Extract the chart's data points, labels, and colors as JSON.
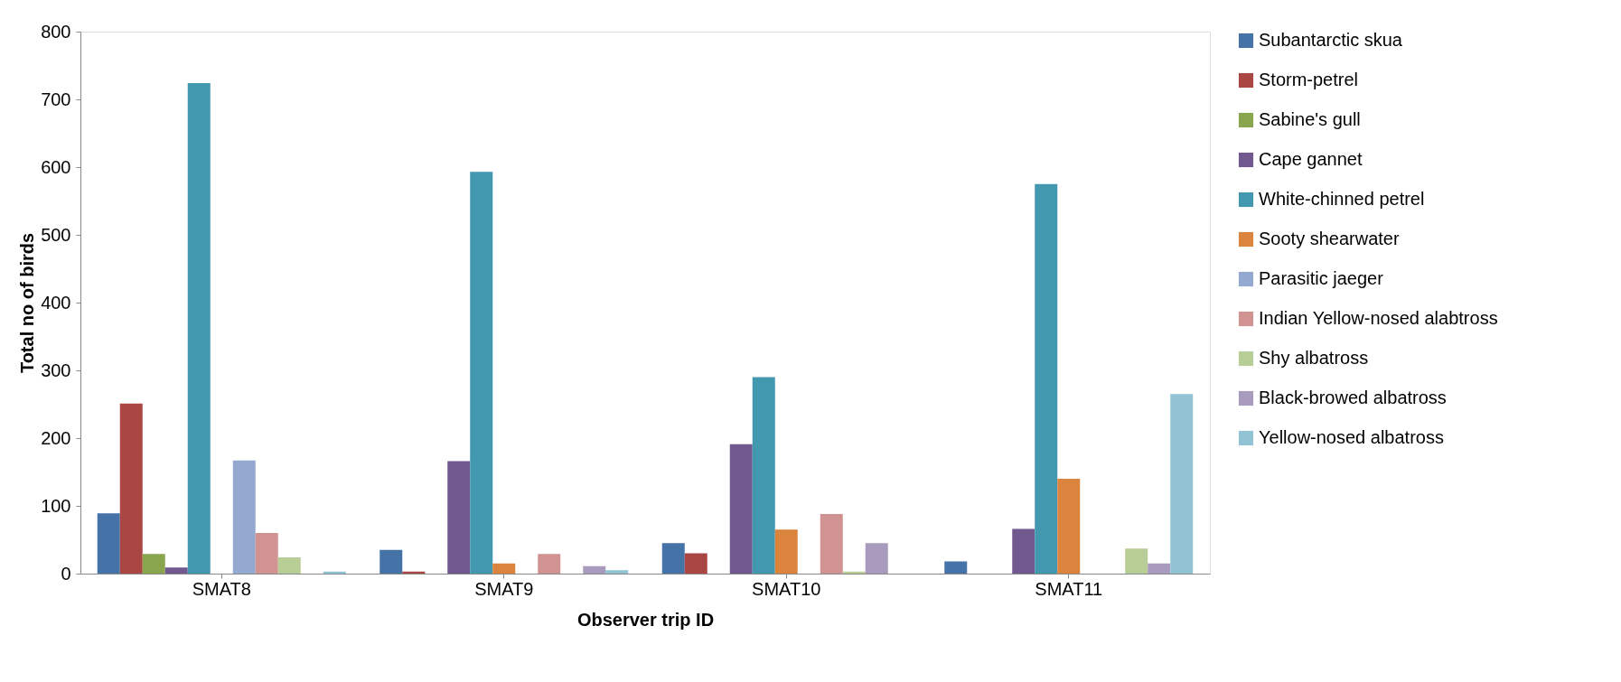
{
  "chart_data": {
    "type": "bar",
    "xlabel": "Observer trip ID",
    "ylabel": "Total no of birds",
    "categories": [
      "SMAT8",
      "SMAT9",
      "SMAT10",
      "SMAT11"
    ],
    "series": [
      {
        "name": "Subantarctic skua",
        "color": "#4572a7",
        "values": [
          89,
          35,
          45,
          18
        ]
      },
      {
        "name": "Storm-petrel",
        "color": "#aa4643",
        "values": [
          251,
          3,
          30,
          0
        ]
      },
      {
        "name": "Sabine's gull",
        "color": "#89a54e",
        "values": [
          29,
          0,
          0,
          0
        ]
      },
      {
        "name": "Cape gannet",
        "color": "#71588f",
        "values": [
          9,
          166,
          191,
          66
        ]
      },
      {
        "name": "White-chinned petrel",
        "color": "#4198af",
        "values": [
          724,
          593,
          290,
          575
        ]
      },
      {
        "name": "Sooty shearwater",
        "color": "#db843d",
        "values": [
          0,
          15,
          65,
          140
        ]
      },
      {
        "name": "Parasitic jaeger",
        "color": "#93a9cf",
        "values": [
          167,
          0,
          0,
          0
        ]
      },
      {
        "name": "Indian Yellow-nosed alabtross",
        "color": "#d19392",
        "values": [
          60,
          29,
          88,
          0
        ]
      },
      {
        "name": "Shy albatross",
        "color": "#b9cd96",
        "values": [
          24,
          0,
          3,
          37
        ]
      },
      {
        "name": "Black-browed albatross",
        "color": "#a99bbd",
        "values": [
          0,
          11,
          45,
          15
        ]
      },
      {
        "name": "Yellow-nosed albatross",
        "color": "#92c3d4",
        "values": [
          3,
          5,
          0,
          265
        ]
      }
    ],
    "ylim": [
      0,
      800
    ],
    "yticks": [
      0,
      100,
      200,
      300,
      400,
      500,
      600,
      700,
      800
    ],
    "grid": false,
    "legend": "right"
  }
}
